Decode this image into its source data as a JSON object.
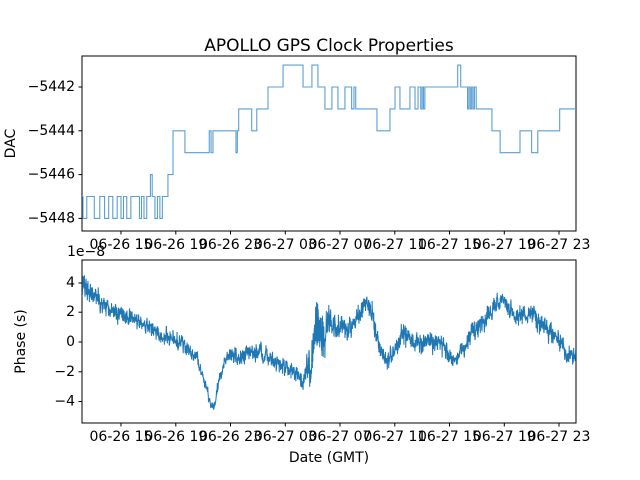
{
  "figure": {
    "title": "APOLLO GPS Clock Properties",
    "background": "#ffffff",
    "text_color": "#000000",
    "line_color": "#1f77b4",
    "step_line_color": "#5a9fd4"
  },
  "x_axis": {
    "label": "Date (GMT)",
    "tick_labels": [
      "06-26 15",
      "06-26 19",
      "06-26 23",
      "06-27 03",
      "06-27 07",
      "06-27 11",
      "06-27 15",
      "06-27 19",
      "06-27 23"
    ],
    "tick_hours": [
      15,
      19,
      23,
      27,
      31,
      35,
      39,
      43,
      47
    ],
    "range_hours_from_0626_midnight": [
      12.15,
      48.24
    ]
  },
  "top_plot": {
    "ylabel": "DAC",
    "ytick_labels": [
      "−5442",
      "−5444",
      "−5446",
      "−5448"
    ],
    "ytick_values": [
      -5442,
      -5444,
      -5446,
      -5448
    ],
    "ylim": [
      -5448.58,
      -5440.58
    ]
  },
  "bottom_plot": {
    "ylabel": "Phase (s)",
    "offset_text": "1e−8",
    "ytick_labels": [
      "4",
      "2",
      "0",
      "−2",
      "−4"
    ],
    "ytick_values": [
      4,
      2,
      0,
      -2,
      -4
    ],
    "ylim_1e8": [
      -5.44,
      5.5
    ]
  },
  "chart_data": [
    {
      "type": "line",
      "name": "DAC",
      "style": "step-after",
      "x_unit": "hours from 2000-06-26 00:00 GMT",
      "points": [
        [
          12.15,
          -5447
        ],
        [
          12.22,
          -5448
        ],
        [
          12.5,
          -5447
        ],
        [
          13.05,
          -5448
        ],
        [
          13.45,
          -5447
        ],
        [
          13.8,
          -5448
        ],
        [
          14.1,
          -5447
        ],
        [
          14.4,
          -5448
        ],
        [
          14.72,
          -5447
        ],
        [
          15.0,
          -5448
        ],
        [
          15.18,
          -5447
        ],
        [
          15.42,
          -5448
        ],
        [
          15.72,
          -5447
        ],
        [
          16.35,
          -5448
        ],
        [
          16.5,
          -5447
        ],
        [
          16.68,
          -5448
        ],
        [
          16.88,
          -5447
        ],
        [
          17.15,
          -5446
        ],
        [
          17.28,
          -5447
        ],
        [
          17.48,
          -5448
        ],
        [
          17.66,
          -5447
        ],
        [
          17.84,
          -5448
        ],
        [
          18.02,
          -5447
        ],
        [
          18.43,
          -5446
        ],
        [
          18.8,
          -5444
        ],
        [
          19.67,
          -5445
        ],
        [
          21.45,
          -5444
        ],
        [
          21.58,
          -5445
        ],
        [
          21.72,
          -5444
        ],
        [
          23.4,
          -5445
        ],
        [
          23.5,
          -5444
        ],
        [
          23.6,
          -5443
        ],
        [
          24.55,
          -5444
        ],
        [
          24.92,
          -5443
        ],
        [
          25.74,
          -5442
        ],
        [
          26.84,
          -5441
        ],
        [
          28.3,
          -5442
        ],
        [
          28.95,
          -5441
        ],
        [
          29.39,
          -5442
        ],
        [
          29.9,
          -5443
        ],
        [
          30.41,
          -5442
        ],
        [
          30.85,
          -5443
        ],
        [
          31.36,
          -5442
        ],
        [
          31.85,
          -5443
        ],
        [
          32.02,
          -5442
        ],
        [
          32.15,
          -5443
        ],
        [
          33.7,
          -5444
        ],
        [
          34.65,
          -5443
        ],
        [
          35.02,
          -5442
        ],
        [
          35.38,
          -5443
        ],
        [
          36.11,
          -5442
        ],
        [
          36.48,
          -5443
        ],
        [
          36.7,
          -5442
        ],
        [
          36.9,
          -5443
        ],
        [
          37.0,
          -5442
        ],
        [
          37.1,
          -5443
        ],
        [
          37.2,
          -5442
        ],
        [
          39.6,
          -5441
        ],
        [
          39.82,
          -5442
        ],
        [
          40.32,
          -5443
        ],
        [
          40.42,
          -5442
        ],
        [
          40.52,
          -5443
        ],
        [
          40.62,
          -5442
        ],
        [
          40.72,
          -5443
        ],
        [
          40.82,
          -5442
        ],
        [
          40.95,
          -5443
        ],
        [
          42.1,
          -5444
        ],
        [
          42.7,
          -5445
        ],
        [
          44.15,
          -5444
        ],
        [
          45.0,
          -5445
        ],
        [
          45.45,
          -5444
        ],
        [
          47.05,
          -5443
        ],
        [
          48.24,
          -5443
        ]
      ]
    },
    {
      "type": "line",
      "name": "Phase (s)",
      "style": "noisy",
      "x_unit": "hours from 2000-06-26 00:00 GMT",
      "y_unit": "1e-8 s",
      "anchors_t_mean_amp": [
        [
          12.15,
          3.7,
          0.9
        ],
        [
          12.6,
          3.5,
          0.8
        ],
        [
          13.3,
          2.8,
          0.7
        ],
        [
          14.1,
          2.1,
          0.65
        ],
        [
          15.0,
          1.9,
          0.6
        ],
        [
          16.0,
          1.4,
          0.55
        ],
        [
          16.8,
          1.1,
          0.5
        ],
        [
          17.8,
          0.5,
          0.55
        ],
        [
          18.6,
          0.3,
          0.6
        ],
        [
          19.3,
          0.0,
          0.55
        ],
        [
          19.9,
          -0.5,
          0.5
        ],
        [
          20.6,
          -1.2,
          0.45
        ],
        [
          21.1,
          -2.6,
          0.5
        ],
        [
          21.55,
          -4.2,
          0.3
        ],
        [
          21.8,
          -4.5,
          0.25
        ],
        [
          22.1,
          -2.9,
          0.45
        ],
        [
          22.6,
          -1.2,
          0.5
        ],
        [
          23.2,
          -0.9,
          0.55
        ],
        [
          23.9,
          -1.0,
          0.6
        ],
        [
          24.6,
          -0.8,
          0.6
        ],
        [
          25.3,
          -0.6,
          0.6
        ],
        [
          26.0,
          -1.3,
          0.55
        ],
        [
          26.8,
          -1.6,
          0.6
        ],
        [
          27.6,
          -2.1,
          0.6
        ],
        [
          28.4,
          -2.5,
          0.6
        ],
        [
          28.9,
          -1.5,
          1.6
        ],
        [
          29.3,
          1.2,
          1.9
        ],
        [
          29.7,
          0.6,
          2.3
        ],
        [
          30.1,
          1.3,
          1.0
        ],
        [
          30.6,
          1.0,
          0.8
        ],
        [
          31.3,
          0.9,
          0.7
        ],
        [
          32.0,
          1.2,
          0.8
        ],
        [
          32.6,
          2.2,
          0.7
        ],
        [
          33.0,
          2.9,
          0.5
        ],
        [
          33.4,
          1.6,
          0.9
        ],
        [
          34.0,
          -0.7,
          0.7
        ],
        [
          34.5,
          -1.3,
          0.7
        ],
        [
          35.1,
          -0.2,
          0.7
        ],
        [
          35.7,
          0.6,
          0.7
        ],
        [
          36.3,
          0.0,
          0.7
        ],
        [
          37.0,
          -0.2,
          0.7
        ],
        [
          37.7,
          0.1,
          0.7
        ],
        [
          38.4,
          -0.2,
          0.7
        ],
        [
          39.0,
          -0.9,
          0.5
        ],
        [
          39.5,
          -1.2,
          0.45
        ],
        [
          40.0,
          -0.3,
          0.6
        ],
        [
          40.6,
          0.6,
          0.7
        ],
        [
          41.3,
          1.1,
          0.7
        ],
        [
          41.9,
          1.9,
          0.7
        ],
        [
          42.5,
          2.6,
          0.6
        ],
        [
          42.9,
          2.8,
          0.5
        ],
        [
          43.4,
          2.2,
          0.6
        ],
        [
          44.0,
          1.6,
          0.65
        ],
        [
          44.7,
          1.9,
          0.55
        ],
        [
          45.2,
          1.7,
          0.6
        ],
        [
          45.8,
          1.0,
          0.7
        ],
        [
          46.4,
          0.6,
          0.7
        ],
        [
          47.0,
          0.0,
          0.6
        ],
        [
          47.6,
          -0.8,
          0.55
        ],
        [
          48.24,
          -0.9,
          0.5
        ]
      ]
    }
  ]
}
